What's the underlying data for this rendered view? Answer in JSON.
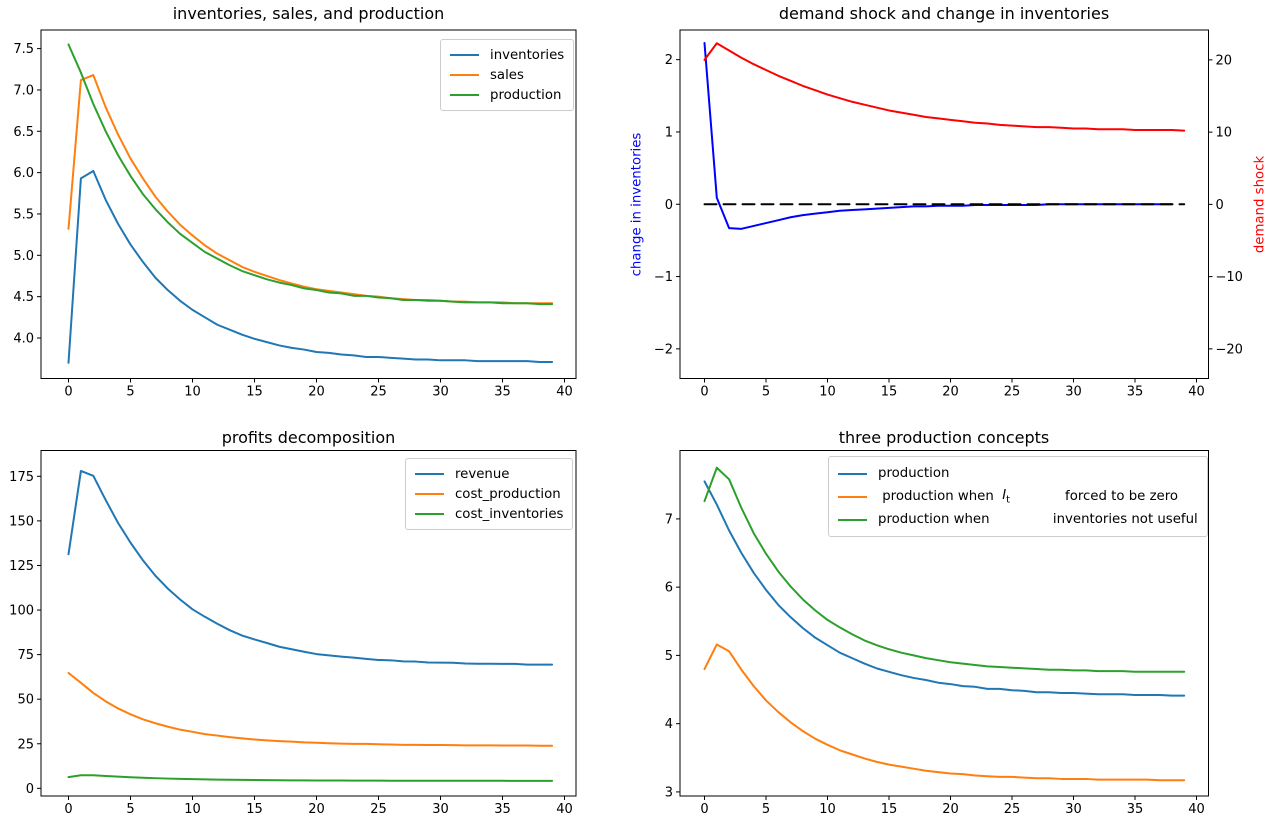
{
  "figure": {
    "background": "#ffffff"
  },
  "palette": {
    "mpl_blue": "#1f77b4",
    "mpl_orange": "#ff7f0e",
    "mpl_green": "#2ca02c",
    "pure_blue": "#0000ff",
    "pure_red": "#ff0000",
    "black": "#000000"
  },
  "chart_data": [
    {
      "id": "inventories-sales-production",
      "type": "line",
      "title": "inventories, sales, and production",
      "xlabel": "",
      "ylabel": "",
      "x": [
        0,
        1,
        2,
        3,
        4,
        5,
        6,
        7,
        8,
        9,
        10,
        11,
        12,
        13,
        14,
        15,
        16,
        17,
        18,
        19,
        20,
        21,
        22,
        23,
        24,
        25,
        26,
        27,
        28,
        29,
        30,
        31,
        32,
        33,
        34,
        35,
        36,
        37,
        38,
        39
      ],
      "xlim": [
        -1.95,
        40.95
      ],
      "xticks": [
        0,
        5,
        10,
        15,
        20,
        25,
        30,
        35,
        40
      ],
      "xtick_labels": [
        "0",
        "5",
        "10",
        "15",
        "20",
        "25",
        "30",
        "35",
        "40"
      ],
      "yaxis": {
        "lim": [
          3.51,
          7.73
        ],
        "ticks": [
          4.0,
          4.5,
          5.0,
          5.5,
          6.0,
          6.5,
          7.0,
          7.5
        ],
        "tick_labels": [
          "4.0",
          "4.5",
          "5.0",
          "5.5",
          "6.0",
          "6.5",
          "7.0",
          "7.5"
        ]
      },
      "grid": false,
      "legend": {
        "loc": "upper right",
        "entries": [
          {
            "color": "#1f77b4",
            "parts": [
              {
                "text": "inventories"
              }
            ]
          },
          {
            "color": "#ff7f0e",
            "parts": [
              {
                "text": "sales"
              }
            ]
          },
          {
            "color": "#2ca02c",
            "parts": [
              {
                "text": "production"
              }
            ]
          }
        ]
      },
      "series": [
        {
          "name": "inventories",
          "color": "#1f77b4",
          "style": "solid",
          "values": [
            3.7,
            5.93,
            6.02,
            5.67,
            5.38,
            5.13,
            4.92,
            4.73,
            4.58,
            4.45,
            4.34,
            4.25,
            4.16,
            4.1,
            4.04,
            3.99,
            3.95,
            3.91,
            3.88,
            3.86,
            3.83,
            3.82,
            3.8,
            3.79,
            3.77,
            3.77,
            3.76,
            3.75,
            3.74,
            3.74,
            3.73,
            3.73,
            3.73,
            3.72,
            3.72,
            3.72,
            3.72,
            3.72,
            3.71,
            3.71
          ]
        },
        {
          "name": "sales",
          "color": "#ff7f0e",
          "style": "solid",
          "values": [
            5.32,
            7.12,
            7.18,
            6.79,
            6.46,
            6.17,
            5.93,
            5.71,
            5.53,
            5.37,
            5.24,
            5.12,
            5.02,
            4.94,
            4.86,
            4.8,
            4.75,
            4.7,
            4.66,
            4.62,
            4.59,
            4.57,
            4.55,
            4.53,
            4.51,
            4.5,
            4.48,
            4.47,
            4.46,
            4.46,
            4.45,
            4.44,
            4.44,
            4.43,
            4.43,
            4.43,
            4.42,
            4.42,
            4.42,
            4.42
          ]
        },
        {
          "name": "production",
          "color": "#2ca02c",
          "style": "solid",
          "values": [
            7.55,
            7.21,
            6.83,
            6.5,
            6.21,
            5.96,
            5.74,
            5.56,
            5.4,
            5.26,
            5.15,
            5.04,
            4.96,
            4.88,
            4.81,
            4.76,
            4.71,
            4.67,
            4.64,
            4.6,
            4.58,
            4.55,
            4.54,
            4.51,
            4.51,
            4.49,
            4.48,
            4.46,
            4.46,
            4.45,
            4.45,
            4.44,
            4.43,
            4.43,
            4.43,
            4.42,
            4.42,
            4.42,
            4.41,
            4.41
          ]
        }
      ]
    },
    {
      "id": "demand-shock-change-in-inventories",
      "type": "line",
      "title": "demand shock and change in inventories",
      "ylabel_left": {
        "text": "change in inventories",
        "color": "#0000ff"
      },
      "ylabel_right": {
        "text": "demand shock",
        "color": "#ff0000"
      },
      "x": [
        0,
        1,
        2,
        3,
        4,
        5,
        6,
        7,
        8,
        9,
        10,
        11,
        12,
        13,
        14,
        15,
        16,
        17,
        18,
        19,
        20,
        21,
        22,
        23,
        24,
        25,
        26,
        27,
        28,
        29,
        30,
        31,
        32,
        33,
        34,
        35,
        36,
        37,
        38,
        39
      ],
      "xlim": [
        -1.95,
        40.95
      ],
      "xticks": [
        0,
        5,
        10,
        15,
        20,
        25,
        30,
        35,
        40
      ],
      "xtick_labels": [
        "0",
        "5",
        "10",
        "15",
        "20",
        "25",
        "30",
        "35",
        "40"
      ],
      "yaxis": {
        "lim": [
          -2.41,
          2.41
        ],
        "ticks": [
          -2,
          -1,
          0,
          1,
          2
        ],
        "tick_labels": [
          "−2",
          "−1",
          "0",
          "1",
          "2"
        ]
      },
      "yaxis_right": {
        "lim": [
          -24.1,
          24.1
        ],
        "ticks": [
          -20,
          -10,
          0,
          10,
          20
        ],
        "tick_labels": [
          "−20",
          "−10",
          "0",
          "10",
          "20"
        ]
      },
      "grid": false,
      "legend": null,
      "series": [
        {
          "name": "change in inventories",
          "axis": "left",
          "color": "#0000ff",
          "style": "solid",
          "values": [
            2.23,
            0.09,
            -0.33,
            -0.34,
            -0.3,
            -0.26,
            -0.22,
            -0.18,
            -0.15,
            -0.13,
            -0.11,
            -0.09,
            -0.08,
            -0.07,
            -0.06,
            -0.05,
            -0.04,
            -0.03,
            -0.03,
            -0.02,
            -0.02,
            -0.02,
            -0.01,
            -0.01,
            -0.01,
            -0.01,
            -0.01,
            -0.01,
            0.0,
            0.0,
            0.0,
            0.0,
            0.0,
            0.0,
            0.0,
            0.0,
            0.0,
            0.0,
            0.0
          ]
        },
        {
          "name": "demand shock",
          "axis": "right",
          "color": "#ff0000",
          "style": "solid",
          "values": [
            20.0,
            22.3,
            21.3,
            20.3,
            19.4,
            18.6,
            17.8,
            17.1,
            16.4,
            15.8,
            15.2,
            14.7,
            14.2,
            13.8,
            13.4,
            13.0,
            12.7,
            12.4,
            12.1,
            11.9,
            11.7,
            11.5,
            11.3,
            11.2,
            11.0,
            10.9,
            10.8,
            10.7,
            10.7,
            10.6,
            10.5,
            10.5,
            10.4,
            10.4,
            10.4,
            10.3,
            10.3,
            10.3,
            10.3,
            10.2
          ]
        },
        {
          "name": "zero line",
          "axis": "left",
          "color": "#000000",
          "style": "dashed",
          "const_value": 0,
          "x_span": [
            0,
            39
          ]
        }
      ]
    },
    {
      "id": "profits-decomposition",
      "type": "line",
      "title": "profits decomposition",
      "x": [
        0,
        1,
        2,
        3,
        4,
        5,
        6,
        7,
        8,
        9,
        10,
        11,
        12,
        13,
        14,
        15,
        16,
        17,
        18,
        19,
        20,
        21,
        22,
        23,
        24,
        25,
        26,
        27,
        28,
        29,
        30,
        31,
        32,
        33,
        34,
        35,
        36,
        37,
        38,
        39
      ],
      "xlim": [
        -1.95,
        40.95
      ],
      "xticks": [
        0,
        5,
        10,
        15,
        20,
        25,
        30,
        35,
        40
      ],
      "xtick_labels": [
        "0",
        "5",
        "10",
        "15",
        "20",
        "25",
        "30",
        "35",
        "40"
      ],
      "yaxis": {
        "lim": [
          -4.3,
          189.5
        ],
        "ticks": [
          0,
          25,
          50,
          75,
          100,
          125,
          150,
          175
        ],
        "tick_labels": [
          "0",
          "25",
          "50",
          "75",
          "100",
          "125",
          "150",
          "175"
        ]
      },
      "grid": false,
      "legend": {
        "loc": "upper right",
        "entries": [
          {
            "color": "#1f77b4",
            "parts": [
              {
                "text": "revenue"
              }
            ]
          },
          {
            "color": "#ff7f0e",
            "parts": [
              {
                "text": "cost_production"
              }
            ]
          },
          {
            "color": "#2ca02c",
            "parts": [
              {
                "text": "cost_inventories"
              }
            ]
          }
        ]
      },
      "series": [
        {
          "name": "revenue",
          "color": "#1f77b4",
          "style": "solid",
          "values": [
            131.3,
            178.0,
            175.3,
            161.7,
            148.8,
            137.8,
            127.9,
            119.3,
            112.1,
            105.9,
            100.4,
            96.2,
            92.3,
            88.7,
            85.7,
            83.5,
            81.5,
            79.4,
            78.0,
            76.6,
            75.3,
            74.6,
            73.9,
            73.3,
            72.6,
            72.0,
            71.8,
            71.2,
            71.1,
            70.6,
            70.5,
            70.4,
            70.0,
            69.9,
            69.9,
            69.8,
            69.8,
            69.4,
            69.4,
            69.4
          ]
        },
        {
          "name": "cost_production",
          "color": "#ff7f0e",
          "style": "solid",
          "values": [
            64.7,
            59.2,
            53.5,
            48.8,
            44.8,
            41.5,
            38.7,
            36.5,
            34.6,
            32.9,
            31.7,
            30.4,
            29.6,
            28.7,
            28.0,
            27.4,
            26.9,
            26.5,
            26.2,
            25.8,
            25.6,
            25.3,
            25.1,
            24.9,
            24.9,
            24.7,
            24.6,
            24.4,
            24.4,
            24.3,
            24.3,
            24.2,
            24.1,
            24.1,
            24.1,
            24.0,
            24.0,
            24.0,
            23.9,
            23.9
          ]
        },
        {
          "name": "cost_inventories",
          "color": "#2ca02c",
          "style": "solid",
          "values": [
            6.3,
            7.35,
            7.37,
            6.92,
            6.55,
            6.21,
            5.94,
            5.69,
            5.48,
            5.3,
            5.15,
            5.01,
            4.9,
            4.81,
            4.71,
            4.65,
            4.59,
            4.53,
            4.49,
            4.44,
            4.41,
            4.38,
            4.36,
            4.34,
            4.32,
            4.3,
            4.28,
            4.27,
            4.26,
            4.26,
            4.25,
            4.23,
            4.23,
            4.22,
            4.22,
            4.22,
            4.21,
            4.21,
            4.21,
            4.21
          ]
        }
      ]
    },
    {
      "id": "three-production-concepts",
      "type": "line",
      "title": "three production concepts",
      "x": [
        0,
        1,
        2,
        3,
        4,
        5,
        6,
        7,
        8,
        9,
        10,
        11,
        12,
        13,
        14,
        15,
        16,
        17,
        18,
        19,
        20,
        21,
        22,
        23,
        24,
        25,
        26,
        27,
        28,
        29,
        30,
        31,
        32,
        33,
        34,
        35,
        36,
        37,
        38,
        39
      ],
      "xlim": [
        -1.95,
        40.95
      ],
      "xticks": [
        0,
        5,
        10,
        15,
        20,
        25,
        30,
        35,
        40
      ],
      "xtick_labels": [
        "0",
        "5",
        "10",
        "15",
        "20",
        "25",
        "30",
        "35",
        "40"
      ],
      "yaxis": {
        "lim": [
          2.94,
          7.98
        ],
        "ticks": [
          3,
          4,
          5,
          6,
          7
        ],
        "tick_labels": [
          "3",
          "4",
          "5",
          "6",
          "7"
        ]
      },
      "grid": false,
      "legend": {
        "loc": "upper right",
        "wide": true,
        "entries": [
          {
            "color": "#1f77b4",
            "parts": [
              {
                "text": "production"
              }
            ]
          },
          {
            "color": "#ff7f0e",
            "parts": [
              {
                "text": " production when  "
              },
              {
                "var": "I",
                "sub": "t"
              },
              {
                "text": "             forced to be zero"
              }
            ]
          },
          {
            "color": "#2ca02c",
            "parts": [
              {
                "text": "production when               inventories not useful"
              }
            ]
          }
        ]
      },
      "series": [
        {
          "name": "production",
          "color": "#1f77b4",
          "style": "solid",
          "values": [
            7.55,
            7.21,
            6.83,
            6.5,
            6.21,
            5.96,
            5.74,
            5.56,
            5.4,
            5.26,
            5.15,
            5.04,
            4.96,
            4.88,
            4.81,
            4.76,
            4.71,
            4.67,
            4.64,
            4.6,
            4.58,
            4.55,
            4.54,
            4.51,
            4.51,
            4.49,
            4.48,
            4.46,
            4.46,
            4.45,
            4.45,
            4.44,
            4.43,
            4.43,
            4.43,
            4.42,
            4.42,
            4.42,
            4.41,
            4.41
          ]
        },
        {
          "name": "production when I_t forced to be zero",
          "color": "#ff7f0e",
          "style": "solid",
          "values": [
            4.8,
            5.16,
            5.06,
            4.79,
            4.55,
            4.34,
            4.17,
            4.02,
            3.89,
            3.78,
            3.69,
            3.61,
            3.55,
            3.49,
            3.44,
            3.4,
            3.37,
            3.34,
            3.31,
            3.29,
            3.27,
            3.26,
            3.24,
            3.23,
            3.22,
            3.22,
            3.21,
            3.2,
            3.2,
            3.19,
            3.19,
            3.19,
            3.18,
            3.18,
            3.18,
            3.18,
            3.18,
            3.17,
            3.17,
            3.17
          ]
        },
        {
          "name": "production when inventories not useful",
          "color": "#2ca02c",
          "style": "solid",
          "values": [
            7.26,
            7.75,
            7.58,
            7.16,
            6.79,
            6.49,
            6.23,
            6.01,
            5.82,
            5.66,
            5.52,
            5.41,
            5.31,
            5.22,
            5.15,
            5.09,
            5.04,
            5.0,
            4.96,
            4.93,
            4.9,
            4.88,
            4.86,
            4.84,
            4.83,
            4.82,
            4.81,
            4.8,
            4.79,
            4.79,
            4.78,
            4.78,
            4.77,
            4.77,
            4.77,
            4.76,
            4.76,
            4.76,
            4.76,
            4.76
          ]
        }
      ]
    }
  ]
}
